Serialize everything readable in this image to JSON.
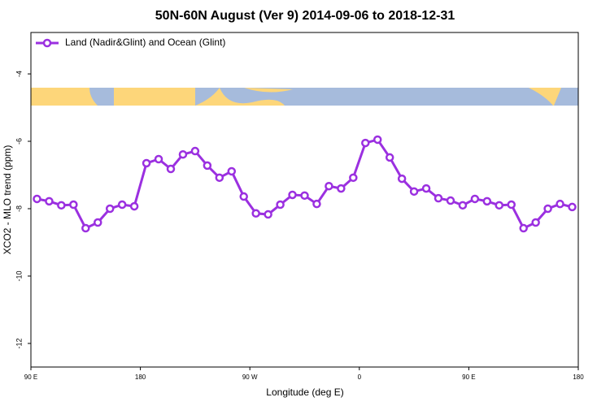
{
  "chart_data": {
    "type": "line",
    "title": "50N-60N August (Ver 9)   2014-09-06 to 2018-12-31",
    "xlabel": "Longitude (deg E)",
    "ylabel": "XCO2 - MLO trend (ppm)",
    "xlim": [
      90,
      540
    ],
    "xticks": [
      {
        "value": 90,
        "label": "90 E"
      },
      180,
      {
        "value": 270,
        "label": "90 W"
      },
      {
        "value": 360,
        "label": "0"
      },
      {
        "value": 450,
        "label": "90 E"
      },
      {
        "value": 540,
        "label": "180"
      }
    ],
    "ylim": [
      -12.7,
      -2.77
    ],
    "yticks": [
      -12,
      -10,
      -8,
      -6,
      -4
    ],
    "legend": "top-left",
    "x": [
      95,
      105,
      115,
      125,
      135,
      145,
      155,
      165,
      175,
      185,
      195,
      205,
      215,
      225,
      235,
      245,
      255,
      265,
      275,
      285,
      295,
      305,
      315,
      325,
      335,
      345,
      355,
      365,
      375,
      385,
      395,
      405,
      415,
      425,
      435,
      445,
      455,
      465,
      475,
      485,
      495,
      505,
      515,
      525,
      535
    ],
    "series": [
      {
        "name": "Land (Nadir&Glint) and Ocean (Glint)",
        "color": "#9b30e0",
        "values": [
          -7.71,
          -7.78,
          -7.9,
          -7.88,
          -8.58,
          -8.41,
          -8.0,
          -7.88,
          -7.93,
          -6.65,
          -6.53,
          -6.82,
          -6.39,
          -6.29,
          -6.72,
          -7.08,
          -6.89,
          -7.64,
          -8.14,
          -8.17,
          -7.88,
          -7.59,
          -7.61,
          -7.86,
          -7.33,
          -7.4,
          -7.08,
          -6.05,
          -5.95,
          -6.48,
          -7.11,
          -7.49,
          -7.4,
          -7.69,
          -7.76,
          -7.9,
          -7.71,
          -7.78,
          -7.9,
          -7.88,
          -8.58,
          -8.41,
          -8.0,
          -7.86,
          -7.95
        ]
      }
    ]
  }
}
